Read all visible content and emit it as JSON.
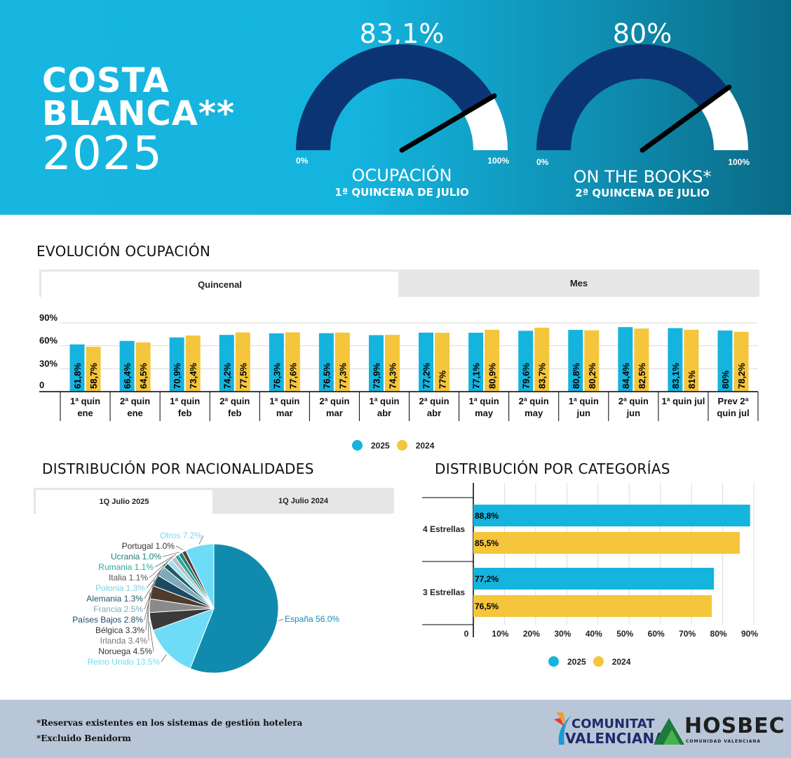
{
  "header": {
    "title_line1": "COSTA",
    "title_line2": "BLANCA**",
    "title_line3": "2025",
    "gauges": [
      {
        "value_label": "83,1%",
        "value": 83.1,
        "min_label": "0%",
        "max_label": "100%",
        "title": "OCUPACIÓN",
        "subtitle": "1ª QUINCENA DE JULIO"
      },
      {
        "value_label": "80%",
        "value": 80,
        "min_label": "0%",
        "max_label": "100%",
        "title": "ON THE BOOKS*",
        "subtitle": "2ª QUINCENA DE JULIO"
      }
    ]
  },
  "evolucion": {
    "title": "EVOLUCIÓN OCUPACIÓN",
    "tabs": [
      {
        "label": "Quincenal"
      },
      {
        "label": "Mes"
      }
    ]
  },
  "nacionalidades": {
    "title": "DISTRIBUCIÓN POR NACIONALIDADES",
    "tabs": [
      {
        "label": "1Q Julio 2025"
      },
      {
        "label": "1Q Julio 2024"
      }
    ]
  },
  "categorias": {
    "title": "DISTRIBUCIÓN POR CATEGORÍAS"
  },
  "legend": {
    "y2025": "2025",
    "y2024": "2024"
  },
  "colors": {
    "c2025": "#14b4de",
    "c2024": "#f5c53b",
    "gauge_fill": "#0b3572",
    "gauge_empty": "#ffffff"
  },
  "footer": {
    "note1": "*Reservas existentes en los sistemas de gestión hotelera",
    "note2": "*Excluido Benidorm",
    "logo1_line1": "COMUNITAT",
    "logo1_line2": "VALENCIANA",
    "logo2_name": "HOSBEC",
    "logo2_sub": "COMUNIDAD VALENCIANA"
  },
  "chart_data": [
    {
      "type": "bar",
      "categories": [
        "1ª quin ene",
        "2ª quin ene",
        "1ª quin feb",
        "2ª quin feb",
        "1ª quin mar",
        "2ª quin mar",
        "1ª quin abr",
        "2ª quin abr",
        "1ª quin may",
        "2ª quin may",
        "1ª quin jun",
        "2ª quin jun",
        "1ª quin jul",
        "Prev 2ª quin jul"
      ],
      "series": [
        {
          "name": "2025",
          "values": [
            61.8,
            66.4,
            70.9,
            74.2,
            76.3,
            76.5,
            73.9,
            77.2,
            77.1,
            79.6,
            80.8,
            84.4,
            83.1,
            80
          ],
          "labels": [
            "61,8%",
            "66,4%",
            "70,9%",
            "74,2%",
            "76,3%",
            "76,5%",
            "73,9%",
            "77,2%",
            "77,1%",
            "79,6%",
            "80,8%",
            "84,4%",
            "83,1%",
            "80%"
          ]
        },
        {
          "name": "2024",
          "values": [
            58.7,
            64.5,
            73.4,
            77.5,
            77.6,
            77.3,
            74.3,
            77,
            80.9,
            83.7,
            80.2,
            82.5,
            81,
            78.2
          ],
          "labels": [
            "58,7%",
            "64,5%",
            "73,4%",
            "77,5%",
            "77,6%",
            "77,3%",
            "74,3%",
            "77%",
            "80,9%",
            "83,7%",
            "80,2%",
            "82,5%",
            "81%",
            "78,2%"
          ]
        }
      ],
      "yticks": [
        "0",
        "30%",
        "60%",
        "90%"
      ],
      "ylim": [
        0,
        90
      ],
      "grid": true
    },
    {
      "type": "pie",
      "slices": [
        {
          "label": "España",
          "value": 56.0,
          "text": "España 56.0%",
          "color": "#118bad"
        },
        {
          "label": "Reino Unido",
          "value": 13.5,
          "text": "Reino Unido 13.5%",
          "color": "#6fdcf7"
        },
        {
          "label": "Noruega",
          "value": 4.5,
          "text": "Noruega 4.5%",
          "color": "#3a3a3a"
        },
        {
          "label": "Irlanda",
          "value": 3.4,
          "text": "Irlanda 3.4%",
          "color": "#8a8a8a"
        },
        {
          "label": "Bélgica",
          "value": 3.3,
          "text": "Bélgica 3.3%",
          "color": "#4e3b2a"
        },
        {
          "label": "Países Bajos",
          "value": 2.8,
          "text": "Países Bajos 2.8%",
          "color": "#1c4a63"
        },
        {
          "label": "Francia",
          "value": 2.5,
          "text": "Francia 2.5%",
          "color": "#7fa9b8"
        },
        {
          "label": "Alemania",
          "value": 1.3,
          "text": "Alemania 1.3%",
          "color": "#1e5a66"
        },
        {
          "label": "Polonia",
          "value": 1.3,
          "text": "Polonia 1.3%",
          "color": "#9fe0ec"
        },
        {
          "label": "Italia",
          "value": 1.1,
          "text": "Italia 1.1%",
          "color": "#bdbdbd"
        },
        {
          "label": "Rumania",
          "value": 1.1,
          "text": "Rumania 1.1%",
          "color": "#2fa89a"
        },
        {
          "label": "Ucrania",
          "value": 1.0,
          "text": "Ucrania 1.0%",
          "color": "#1f7d74"
        },
        {
          "label": "Portugal",
          "value": 1.0,
          "text": "Portugal 1.0%",
          "color": "#5a3a2e"
        },
        {
          "label": "Otros",
          "value": 7.2,
          "text": "Otros 7.2%",
          "color": "#6fdcf7"
        }
      ]
    },
    {
      "type": "bar",
      "orientation": "horizontal",
      "categories": [
        "4 Estrellas",
        "3 Estrellas"
      ],
      "series": [
        {
          "name": "2025",
          "values": [
            88.8,
            77.2
          ],
          "labels": [
            "88,8%",
            "77,2%"
          ]
        },
        {
          "name": "2024",
          "values": [
            85.5,
            76.5
          ],
          "labels": [
            "85,5%",
            "76,5%"
          ]
        }
      ],
      "xticks": [
        "0",
        "10%",
        "20%",
        "30%",
        "40%",
        "50%",
        "60%",
        "70%",
        "80%",
        "90%"
      ],
      "xlim": [
        0,
        90
      ],
      "grid": true
    }
  ]
}
